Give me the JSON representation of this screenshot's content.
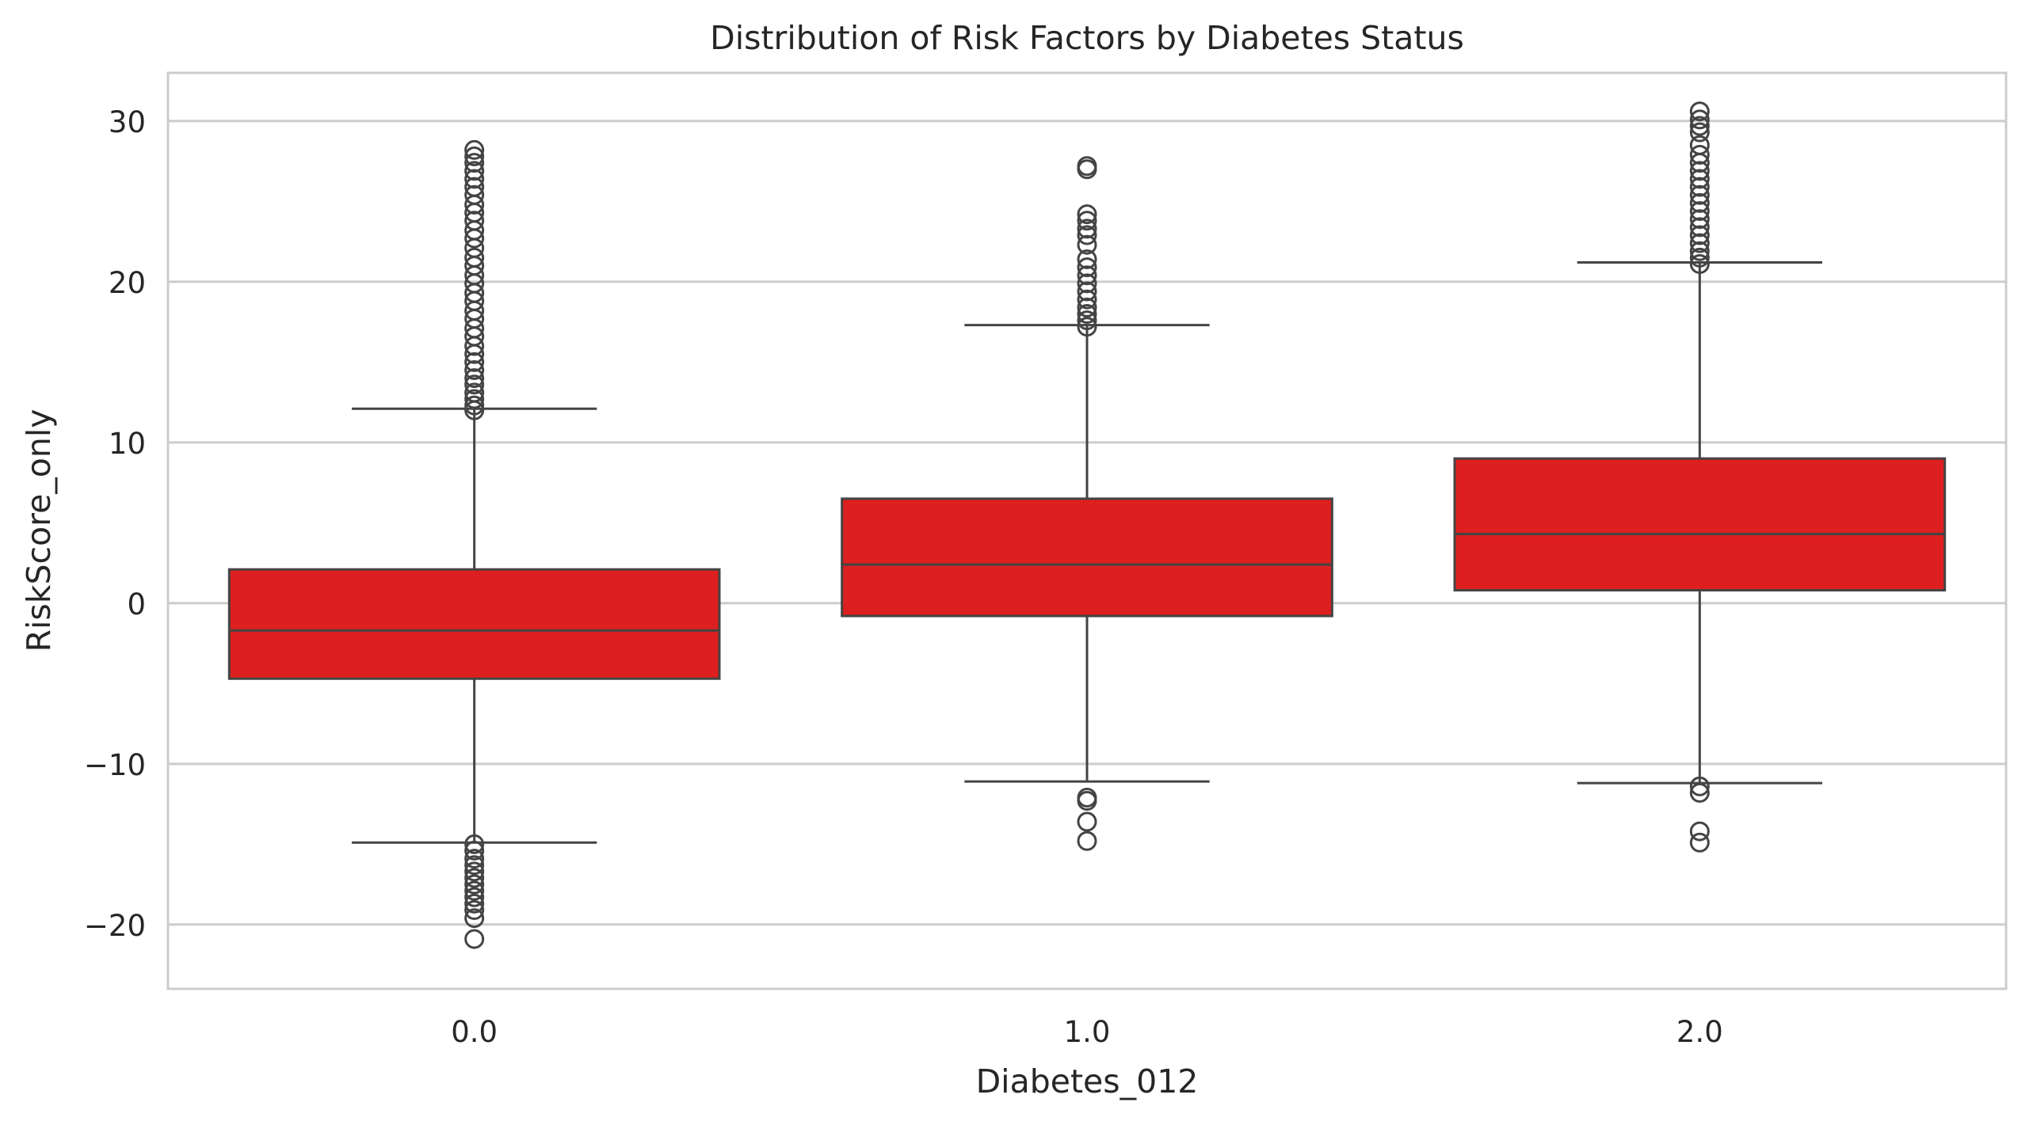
{
  "chart_data": {
    "type": "box",
    "title": "Distribution of Risk Factors by Diabetes Status",
    "xlabel": "Diabetes_012",
    "ylabel": "RiskScore_only",
    "ylim": [
      -24,
      33
    ],
    "yticks": [
      30,
      20,
      10,
      0,
      -10,
      -20
    ],
    "ytick_labels": [
      "30",
      "20",
      "10",
      "0",
      "−10",
      "−20"
    ],
    "categories": [
      "0.0",
      "1.0",
      "2.0"
    ],
    "grid": "horizontal",
    "box_color": "#dd1f1f",
    "line_color": "#444444",
    "boxes": [
      {
        "category": "0.0",
        "whisker_low": -14.9,
        "q1": -4.7,
        "median": -1.7,
        "q3": 2.1,
        "whisker_high": 12.1,
        "outliers_high": [
          12.0,
          12.3,
          12.7,
          13.1,
          13.6,
          14.0,
          14.5,
          15.0,
          15.5,
          16.0,
          16.6,
          17.1,
          17.7,
          18.2,
          18.8,
          19.3,
          19.9,
          20.4,
          21.0,
          21.5,
          22.1,
          22.7,
          23.2,
          23.8,
          24.3,
          24.8,
          25.4,
          25.9,
          26.4,
          26.9,
          27.4,
          27.8,
          28.2
        ],
        "outliers_low": [
          -15.0,
          -15.4,
          -15.9,
          -16.3,
          -16.7,
          -17.1,
          -17.5,
          -17.9,
          -18.3,
          -18.7,
          -19.1,
          -19.6,
          -20.9
        ]
      },
      {
        "category": "1.0",
        "whisker_low": -11.1,
        "q1": -0.8,
        "median": 2.4,
        "q3": 6.5,
        "whisker_high": 17.3,
        "outliers_high": [
          17.2,
          17.6,
          18.0,
          18.4,
          18.9,
          19.4,
          19.9,
          20.4,
          20.9,
          21.4,
          22.3,
          22.9,
          23.3,
          23.8,
          24.2,
          27.0,
          27.2
        ],
        "outliers_low": [
          -12.1,
          -12.3,
          -13.6,
          -14.8
        ]
      },
      {
        "category": "2.0",
        "whisker_low": -11.2,
        "q1": 0.8,
        "median": 4.3,
        "q3": 9.0,
        "whisker_high": 21.2,
        "outliers_high": [
          21.1,
          21.5,
          21.9,
          22.4,
          22.9,
          23.4,
          23.9,
          24.4,
          24.9,
          25.4,
          25.9,
          26.4,
          26.9,
          27.4,
          27.9,
          28.5,
          29.3,
          29.7,
          30.1,
          30.6
        ],
        "outliers_low": [
          -11.4,
          -11.8,
          -14.2,
          -14.9
        ]
      }
    ]
  }
}
